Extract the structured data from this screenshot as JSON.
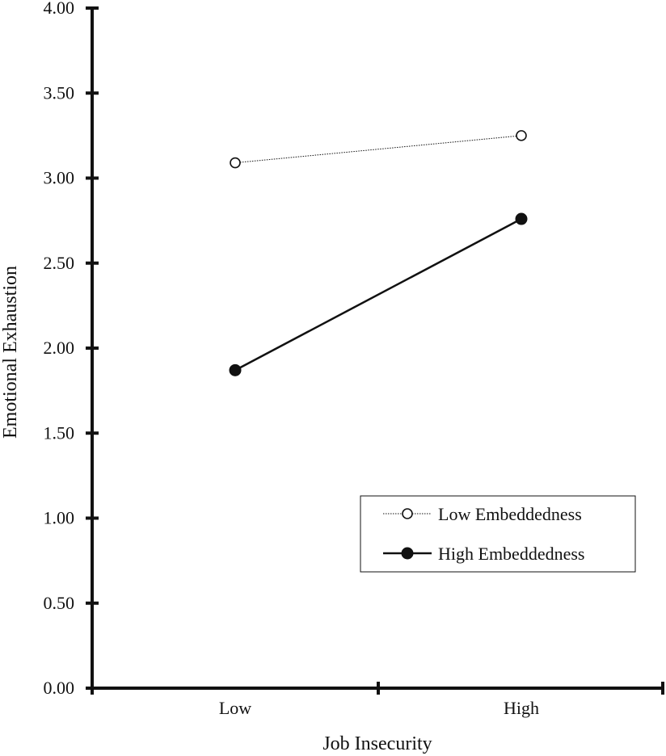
{
  "chart_data": {
    "type": "line",
    "title": "",
    "xlabel": "Job Insecurity",
    "ylabel": "Emotional Exhaustion",
    "categories": [
      "Low",
      "High"
    ],
    "ylim": [
      0,
      4
    ],
    "yticks": [
      "0.00",
      "0.50",
      "1.00",
      "1.50",
      "2.00",
      "2.50",
      "3.00",
      "3.50",
      "4.00"
    ],
    "ytick_values": [
      0,
      0.5,
      1,
      1.5,
      2,
      2.5,
      3,
      3.5,
      4
    ],
    "grid": false,
    "legend": "bottom-right",
    "series": [
      {
        "name": "Low Embeddedness",
        "values": [
          3.09,
          3.25
        ],
        "marker": "open-circle",
        "line": "thin-dotted",
        "color": "#111111"
      },
      {
        "name": "High Embeddedness",
        "values": [
          1.87,
          2.76
        ],
        "marker": "filled-circle",
        "line": "solid",
        "color": "#111111"
      }
    ]
  }
}
